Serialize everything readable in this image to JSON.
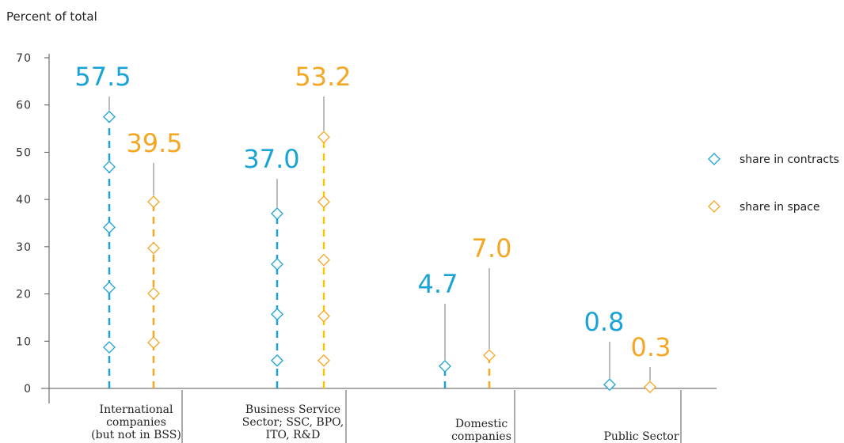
{
  "chart_data": {
    "type": "scatter",
    "ylabel": "Percent of total",
    "ylim": [
      0,
      70
    ],
    "yticks": [
      0,
      10,
      20,
      30,
      40,
      50,
      60,
      70
    ],
    "categories": [
      [
        "International",
        "companies",
        "(but not in BSS)"
      ],
      [
        "Business Service",
        "Sector; SSC, BPO,",
        "ITO, R&D"
      ],
      [
        "Domestic",
        "companies"
      ],
      [
        "Public Sector"
      ]
    ],
    "series": [
      {
        "name": "share in contracts",
        "color": "#1aa3d6",
        "totals": [
          57.5,
          37.0,
          4.7,
          0.8
        ],
        "points": [
          [
            8.7,
            21.3,
            34.1,
            46.9,
            57.5
          ],
          [
            5.9,
            15.7,
            26.3,
            37.0
          ],
          [
            4.7
          ],
          [
            0.8
          ]
        ]
      },
      {
        "name": "share in space",
        "color": "#f5a623",
        "totals": [
          39.5,
          53.2,
          7.0,
          0.3
        ],
        "points": [
          [
            9.7,
            20.1,
            29.7,
            39.5
          ],
          [
            5.9,
            15.3,
            27.2,
            39.5,
            53.2
          ],
          [
            7.0
          ],
          [
            0.3
          ]
        ]
      }
    ],
    "total_labels": [
      [
        "57.5",
        "39.5"
      ],
      [
        "37.0",
        "53.2"
      ],
      [
        "4.7",
        "7.0"
      ],
      [
        "0.8",
        "0.3"
      ]
    ],
    "legend": [
      "share in contracts",
      "share in space"
    ],
    "legend_position": "right"
  }
}
